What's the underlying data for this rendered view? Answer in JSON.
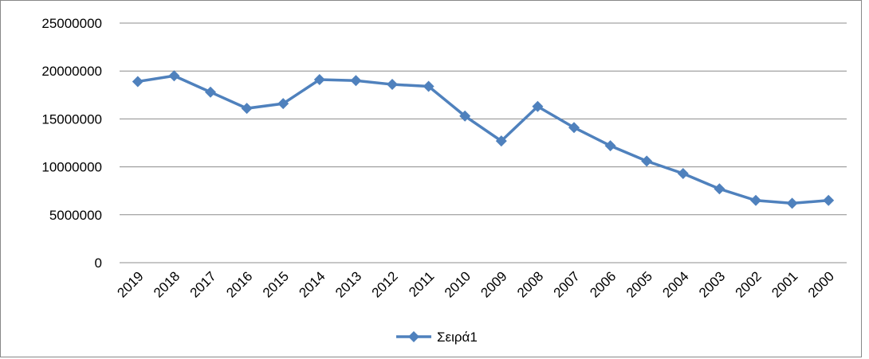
{
  "chart_data": {
    "type": "line",
    "categories": [
      "2019",
      "2018",
      "2017",
      "2016",
      "2015",
      "2014",
      "2013",
      "2012",
      "2011",
      "2010",
      "2009",
      "2008",
      "2007",
      "2006",
      "2005",
      "2004",
      "2003",
      "2002",
      "2001",
      "2000"
    ],
    "series": [
      {
        "name": "Σειρά1",
        "color": "#4f81bd",
        "values": [
          18900000,
          19500000,
          17800000,
          16100000,
          16600000,
          19100000,
          19000000,
          18600000,
          18400000,
          15300000,
          12700000,
          16300000,
          14100000,
          12200000,
          10600000,
          9300000,
          7700000,
          6500000,
          6200000,
          6500000
        ]
      }
    ],
    "ylim": [
      0,
      25000000
    ],
    "yticks": [
      0,
      5000000,
      10000000,
      15000000,
      20000000,
      25000000
    ],
    "grid": true,
    "legend": "bottom"
  }
}
